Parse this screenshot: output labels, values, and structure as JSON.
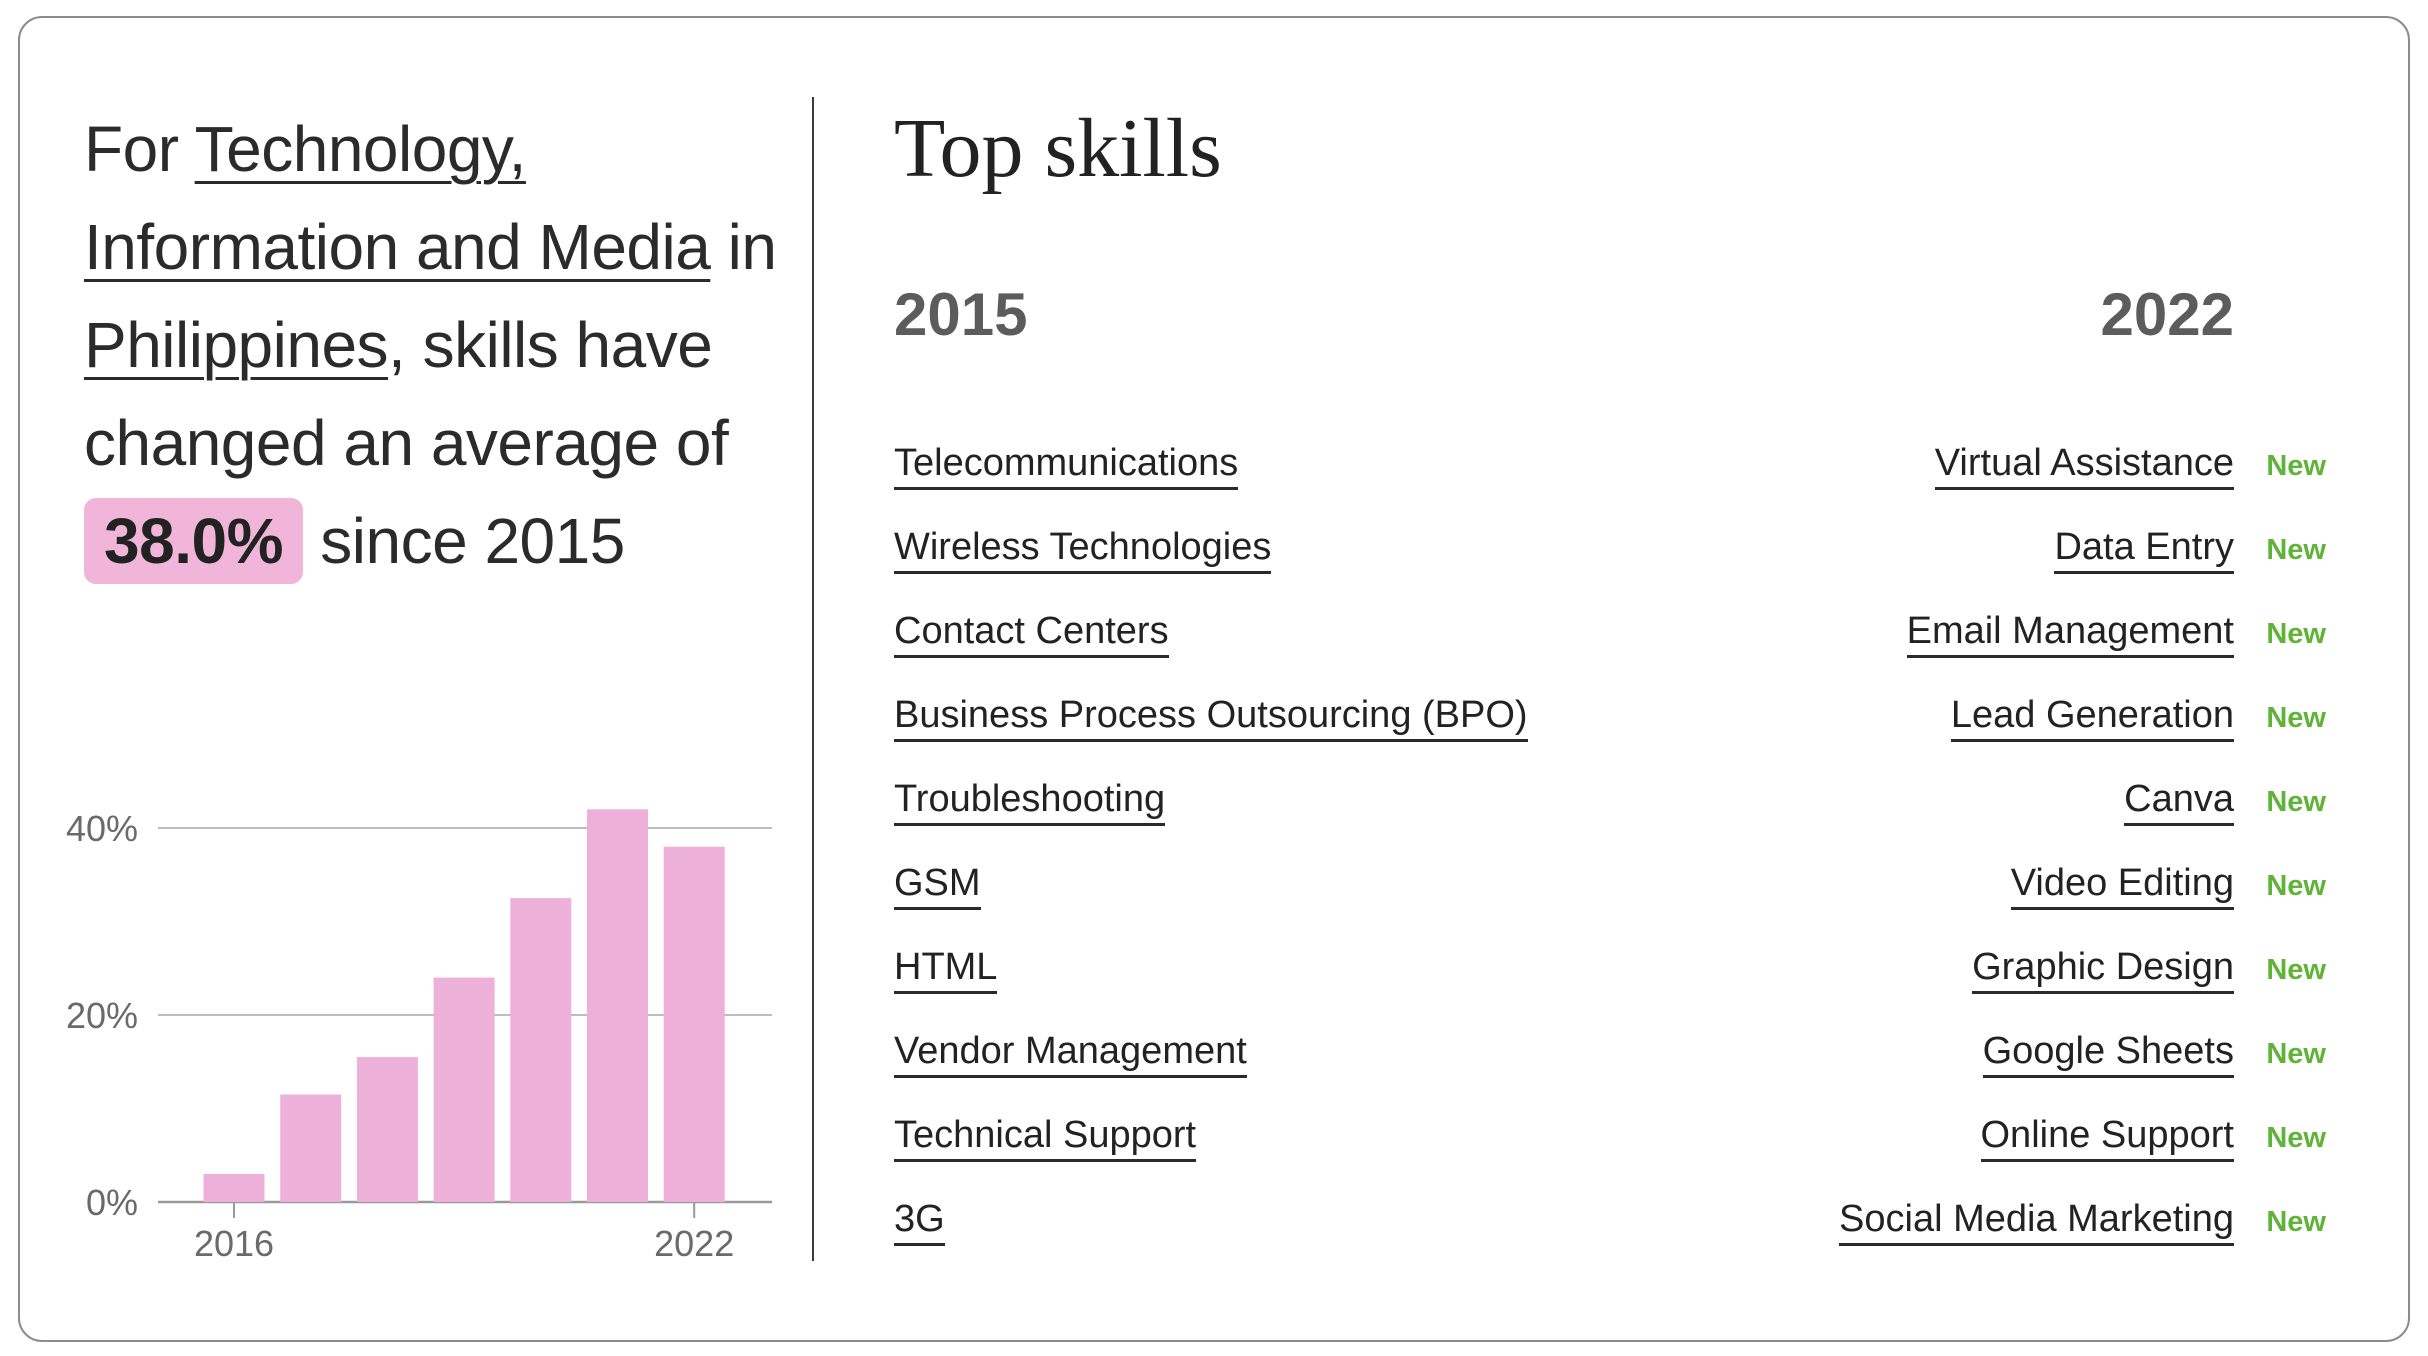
{
  "headline": {
    "prefix": "For ",
    "industry": "Technology, Information and Media",
    "connector": " in ",
    "country": "Philippines",
    "middle": ", skills have changed an average of ",
    "percent": "38.0%",
    "suffix": " since 2015"
  },
  "right": {
    "title": "Top skills",
    "year_left": "2015",
    "year_right": "2022",
    "skills_2015": [
      "Telecommunications",
      "Wireless Technologies",
      "Contact Centers",
      "Business Process Outsourcing (BPO)",
      "Troubleshooting",
      "GSM",
      "HTML",
      "Vendor Management",
      "Technical Support",
      "3G"
    ],
    "skills_2022": [
      {
        "name": "Virtual Assistance",
        "badge": "New"
      },
      {
        "name": "Data Entry",
        "badge": "New"
      },
      {
        "name": "Email Management",
        "badge": "New"
      },
      {
        "name": "Lead Generation",
        "badge": "New"
      },
      {
        "name": "Canva",
        "badge": "New"
      },
      {
        "name": "Video Editing",
        "badge": "New"
      },
      {
        "name": "Graphic Design",
        "badge": "New"
      },
      {
        "name": "Google Sheets",
        "badge": "New"
      },
      {
        "name": "Online Support",
        "badge": "New"
      },
      {
        "name": "Social Media Marketing",
        "badge": "New"
      }
    ]
  },
  "colors": {
    "bar": "#ecb0d9",
    "highlight": "#f0b5d9",
    "new_badge": "#5fb336",
    "grid": "#bdbdbd"
  },
  "chart_data": {
    "type": "bar",
    "x": [
      2016,
      2017,
      2018,
      2019,
      2020,
      2021,
      2022
    ],
    "values": [
      3,
      11.5,
      15.5,
      24,
      32.5,
      42,
      38
    ],
    "ylim": [
      0,
      40
    ],
    "yticks": [
      0,
      20,
      40
    ],
    "ytick_labels": [
      "0%",
      "20%",
      "40%"
    ],
    "xtick_labels": [
      "2016",
      "2022"
    ],
    "xtick_positions": [
      2016,
      2022
    ],
    "grid": true
  }
}
